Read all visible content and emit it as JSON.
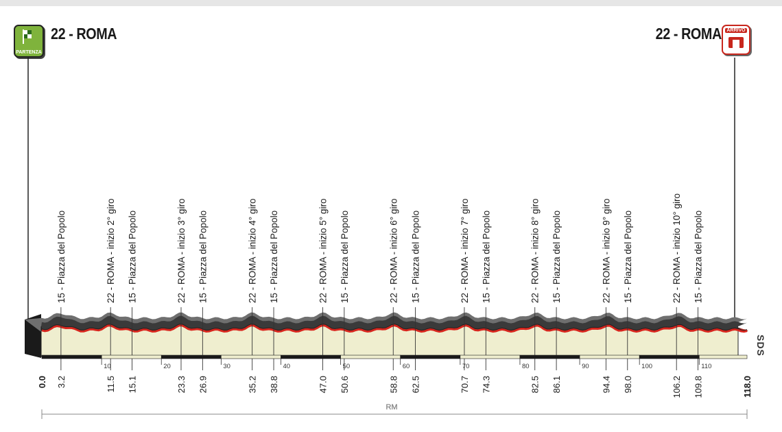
{
  "stage": {
    "start_town": "22 - ROMA",
    "finish_town": "22 - ROMA",
    "start_badge_label": "PARTENZA",
    "finish_badge_label": "ARRIVO",
    "axis_unit": "RM",
    "logo_text": "SDS"
  },
  "colors": {
    "profile_fill": "#efeecf",
    "ridge": "#2b2b2b",
    "road": "#d7261e",
    "badge_green": "#7fb33c",
    "badge_red": "#c8261c"
  },
  "chart_data": {
    "type": "area",
    "x_unit": "km",
    "x_range": [
      0,
      118
    ],
    "km_scale_ticks": [
      10,
      20,
      30,
      40,
      50,
      60,
      70,
      80,
      90,
      100,
      110
    ],
    "waypoints": [
      {
        "km": 0.0,
        "name": ""
      },
      {
        "km": 3.2,
        "name": "15 - Piazza del Popolo"
      },
      {
        "km": 11.5,
        "name": "22 - ROMA - inizio 2° giro"
      },
      {
        "km": 15.1,
        "name": "15 - Piazza del Popolo"
      },
      {
        "km": 23.3,
        "name": "22 - ROMA - inizio 3° giro"
      },
      {
        "km": 26.9,
        "name": "15 - Piazza del Popolo"
      },
      {
        "km": 35.2,
        "name": "22 - ROMA - inizio 4° giro"
      },
      {
        "km": 38.8,
        "name": "15 - Piazza del Popolo"
      },
      {
        "km": 47.0,
        "name": "22 - ROMA - inizio 5° giro"
      },
      {
        "km": 50.6,
        "name": "15 - Piazza del Popolo"
      },
      {
        "km": 58.8,
        "name": "22 - ROMA - inizio 6° giro"
      },
      {
        "km": 62.5,
        "name": "15 - Piazza del Popolo"
      },
      {
        "km": 70.7,
        "name": "22 - ROMA - inizio 7° giro"
      },
      {
        "km": 74.3,
        "name": "15 - Piazza del Popolo"
      },
      {
        "km": 82.5,
        "name": "22 - ROMA - inizio 8° giro"
      },
      {
        "km": 86.1,
        "name": "15 - Piazza del Popolo"
      },
      {
        "km": 94.4,
        "name": "22 - ROMA - inizio 9° giro"
      },
      {
        "km": 98.0,
        "name": "15 - Piazza del Popolo"
      },
      {
        "km": 106.2,
        "name": "22 - ROMA - inizio 10° giro"
      },
      {
        "km": 109.8,
        "name": "15 - Piazza del Popolo"
      },
      {
        "km": 118.0,
        "name": ""
      }
    ]
  }
}
